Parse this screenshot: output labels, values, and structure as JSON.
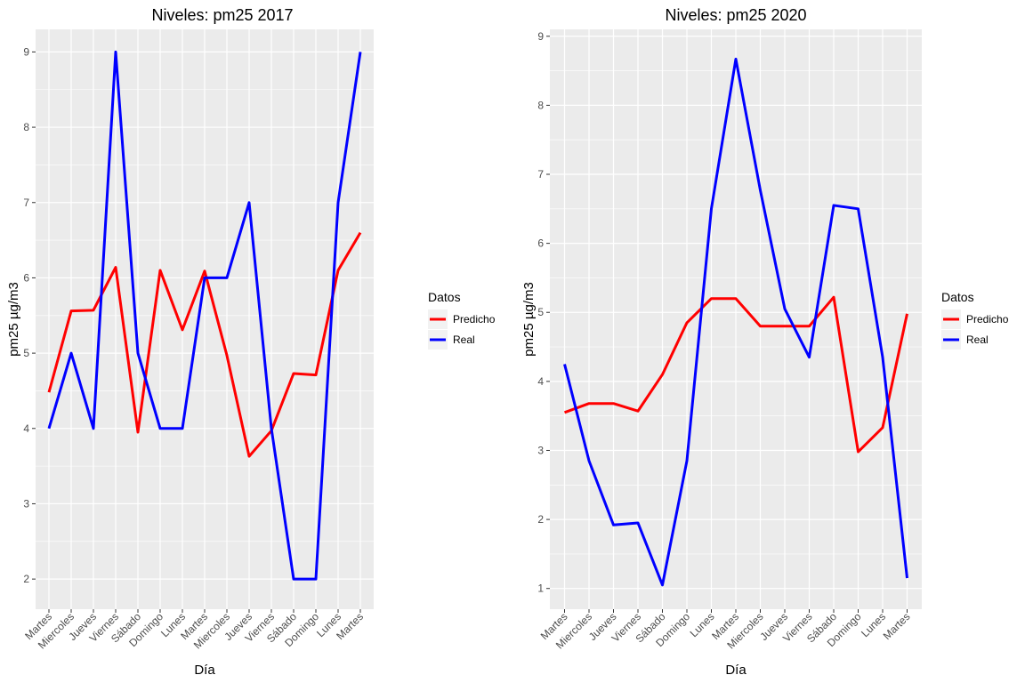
{
  "chart_data": [
    {
      "type": "line",
      "title": "Niveles: pm25 2017",
      "xlabel": "Día",
      "ylabel": "pm25 µg/m3",
      "categories": [
        "Martes",
        "Miercoles",
        "Jueves",
        "Viernes",
        "Sábado",
        "Domingo",
        "Lunes",
        "Martes",
        "Miercoles",
        "Jueves",
        "Viernes",
        "Sábado",
        "Domingo",
        "Lunes",
        "Martes"
      ],
      "y_ticks": [
        2,
        3,
        4,
        5,
        6,
        7,
        8,
        9
      ],
      "ylim": [
        1.6,
        9.3
      ],
      "grid": true,
      "legend": {
        "title": "Datos",
        "position": "right"
      },
      "series": [
        {
          "name": "Predicho",
          "color": "#ff0000",
          "values": [
            4.48,
            5.56,
            5.57,
            6.14,
            3.95,
            6.1,
            5.31,
            6.09,
            4.97,
            3.63,
            3.97,
            4.73,
            4.71,
            6.1,
            6.6
          ]
        },
        {
          "name": "Real",
          "color": "#0000ff",
          "values": [
            4,
            5,
            4,
            9,
            5,
            4,
            4,
            6,
            6,
            7,
            4,
            2,
            2,
            7,
            9
          ]
        }
      ]
    },
    {
      "type": "line",
      "title": "Niveles: pm25 2020",
      "xlabel": "Día",
      "ylabel": "pm25 µg/m3",
      "categories": [
        "Martes",
        "Miercoles",
        "Jueves",
        "Viernes",
        "Sábado",
        "Domingo",
        "Lunes",
        "Martes",
        "Miercoles",
        "Jueves",
        "Viernes",
        "Sábado",
        "Domingo",
        "Lunes",
        "Martes"
      ],
      "y_ticks": [
        1,
        2,
        3,
        4,
        5,
        6,
        7,
        8,
        9
      ],
      "ylim": [
        0.7,
        9.1
      ],
      "grid": true,
      "legend": {
        "title": "Datos",
        "position": "right"
      },
      "series": [
        {
          "name": "Predicho",
          "color": "#ff0000",
          "values": [
            3.55,
            3.68,
            3.68,
            3.57,
            4.1,
            4.85,
            5.2,
            5.2,
            4.8,
            4.8,
            4.8,
            5.22,
            2.98,
            3.33,
            4.98
          ]
        },
        {
          "name": "Real",
          "color": "#0000ff",
          "values": [
            4.25,
            2.85,
            1.92,
            1.95,
            1.05,
            2.85,
            6.5,
            8.67,
            6.77,
            5.05,
            4.35,
            6.55,
            6.5,
            4.35,
            1.15
          ]
        }
      ]
    }
  ]
}
